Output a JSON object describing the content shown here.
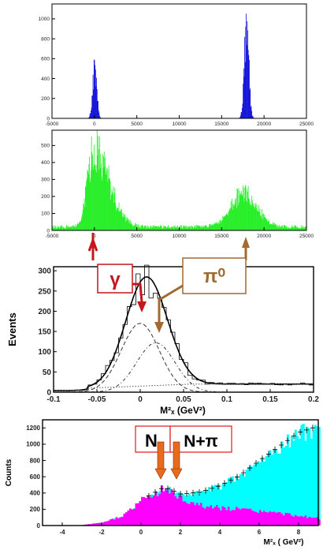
{
  "chart_data": [
    {
      "type": "bar",
      "panel": "top histogram (blue)",
      "color": "#1010d8",
      "xlim": [
        -5000,
        25000
      ],
      "ylim": [
        0,
        1150
      ],
      "xticks": [
        "-5000",
        "0",
        "5000",
        "10000",
        "15000",
        "20000",
        "25000"
      ],
      "yticks": [
        "0",
        "200",
        "400",
        "600",
        "800",
        "1000"
      ],
      "peaks": [
        {
          "x": 0,
          "height": 520,
          "width": 250
        },
        {
          "x": 17900,
          "height": 1050,
          "width": 260
        }
      ]
    },
    {
      "type": "bar",
      "panel": "second histogram (green)",
      "color": "#22ee22",
      "xlim": [
        -5000,
        25000
      ],
      "ylim": [
        0,
        590
      ],
      "xticks": [
        "-5000",
        "0",
        "5000",
        "10000",
        "15000",
        "20000",
        "25000"
      ],
      "yticks": [
        "0",
        "100",
        "200",
        "300",
        "400",
        "500"
      ],
      "peaks": [
        {
          "x": -150,
          "height": 480,
          "width": 700,
          "tail": 1800
        },
        {
          "x": 17600,
          "height": 210,
          "width": 1500
        }
      ],
      "baseline": 25
    },
    {
      "type": "line",
      "panel": "third fit plot",
      "ylabel": "Events",
      "xlabel": "M²ₓ (GeV²)",
      "xlim": [
        -0.1,
        0.2
      ],
      "ylim": [
        0,
        310
      ],
      "xticks": [
        "-0.1",
        "-0.05",
        "0",
        "0.05",
        "0.1",
        "0.15",
        "0.2"
      ],
      "yticks": [
        "0",
        "50",
        "100",
        "150",
        "200",
        "250",
        "300"
      ],
      "series": [
        {
          "style": "histogram",
          "peak_x": 0.01,
          "peak_y": 268
        },
        {
          "style": "total fit",
          "peak_x": 0.005,
          "peak_y": 278
        },
        {
          "style": "gamma component",
          "center": 0.0,
          "sigma": 0.022,
          "amplitude": 170
        },
        {
          "style": "pi0 component",
          "center": 0.018,
          "sigma": 0.022,
          "amplitude": 122
        },
        {
          "style": "background",
          "level": 20
        }
      ],
      "annotations": [
        "γ",
        "π⁰"
      ]
    },
    {
      "type": "area",
      "panel": "bottom histogram",
      "ylabel": "Counts",
      "xlabel": "M²ₓ ( GeV²)",
      "xlim": [
        -5,
        9
      ],
      "ylim": [
        0,
        1300
      ],
      "xticks": [
        "-4",
        "-2",
        "0",
        "2",
        "4",
        "6",
        "8"
      ],
      "yticks": [
        "0",
        "200",
        "400",
        "600",
        "800",
        "1000",
        "1200"
      ],
      "series": [
        {
          "color": "#ff00ff",
          "x": [
            -4,
            -3,
            -2,
            -1,
            -0.5,
            0,
            0.5,
            1,
            1.2,
            1.5,
            2,
            3,
            4,
            5,
            6,
            7,
            8,
            9
          ],
          "values": [
            0,
            5,
            35,
            110,
            200,
            300,
            370,
            440,
            460,
            420,
            330,
            250,
            220,
            200,
            175,
            150,
            120,
            90
          ]
        },
        {
          "color": "#00ffff",
          "x": [
            -4,
            -3,
            -2,
            -1,
            -0.5,
            0,
            0.5,
            1,
            1.2,
            1.5,
            2,
            3,
            4,
            5,
            6,
            7,
            8,
            9
          ],
          "values": [
            0,
            5,
            35,
            110,
            200,
            300,
            370,
            440,
            460,
            430,
            380,
            400,
            480,
            600,
            780,
            950,
            1120,
            1200
          ]
        }
      ],
      "annotations": [
        "N",
        "N+π"
      ]
    }
  ]
}
